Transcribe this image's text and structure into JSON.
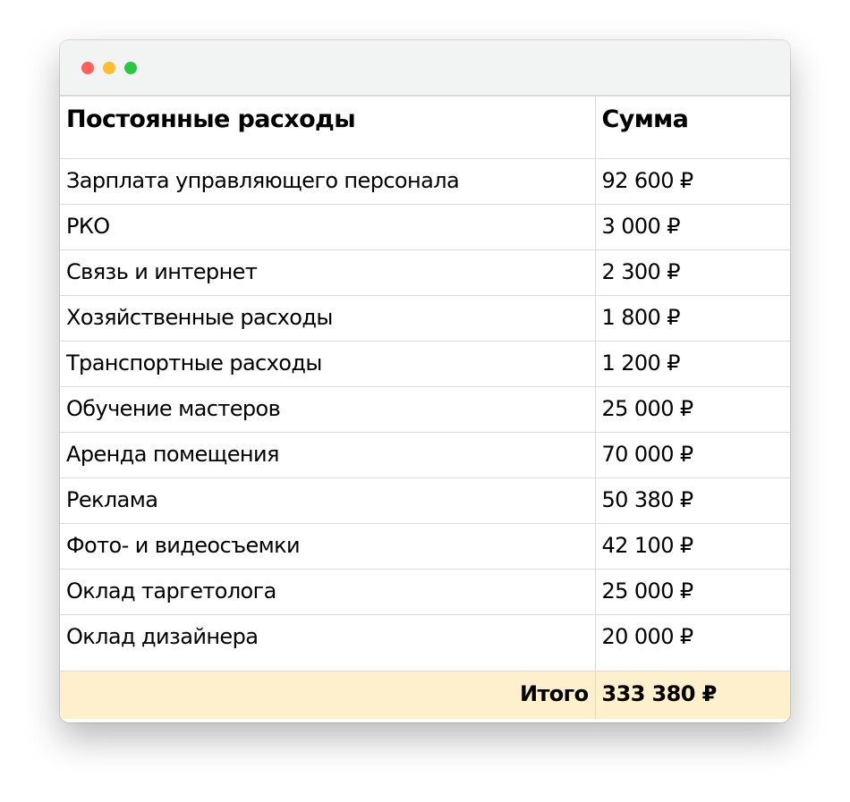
{
  "window": {
    "controls": [
      "close",
      "minimize",
      "maximize"
    ]
  },
  "table": {
    "headers": [
      "Постоянные расходы",
      "Сумма"
    ],
    "rows": [
      {
        "name": "Зарплата управляющего персонала",
        "amount": "92 600 ₽"
      },
      {
        "name": "РКО",
        "amount": "3 000 ₽"
      },
      {
        "name": "Связь и интернет",
        "amount": "2 300 ₽"
      },
      {
        "name": "Хозяйственные расходы",
        "amount": "1 800 ₽"
      },
      {
        "name": "Транспортные расходы",
        "amount": "1 200 ₽"
      },
      {
        "name": "Обучение мастеров",
        "amount": "25 000 ₽"
      },
      {
        "name": "Аренда помещения",
        "amount": "70 000 ₽"
      },
      {
        "name": "Реклама",
        "amount": "50 380 ₽"
      },
      {
        "name": "Фото- и видеосъемки",
        "amount": "42 100 ₽"
      },
      {
        "name": "Оклад таргетолога",
        "amount": "25 000 ₽"
      },
      {
        "name": "Оклад дизайнера",
        "amount": "20 000 ₽"
      }
    ],
    "total": {
      "label": "Итого",
      "amount": "333 380 ₽"
    }
  },
  "colors": {
    "total_bg": "#fef0cd",
    "close": "#fe5f57",
    "minimize": "#febc2e",
    "maximize": "#28c840"
  }
}
